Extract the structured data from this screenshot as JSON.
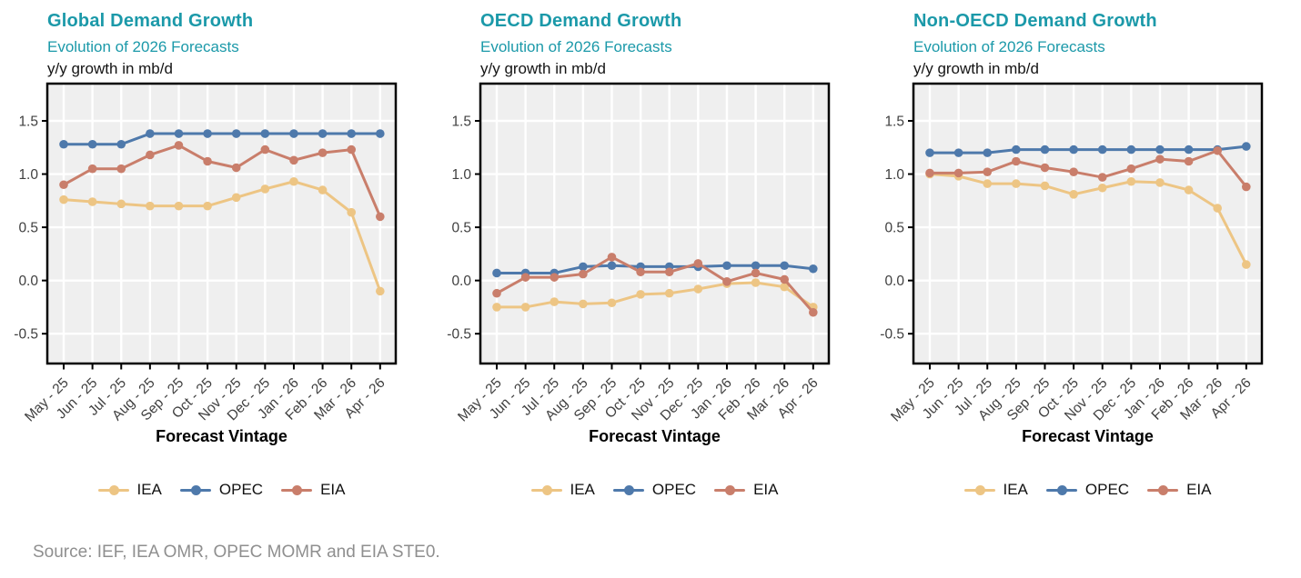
{
  "source_note": "Source: IEF, IEA OMR, OPEC MOMR and EIA STE0.",
  "styles": {
    "title_color": "#1b99a9",
    "axis_text_color": "#404040",
    "panel_bg": "#efefef",
    "grid_color": "#ffffff",
    "axis_line_color": "#000000",
    "source_color": "#8f8f8f"
  },
  "chart_data": [
    {
      "type": "line",
      "title": "Global Demand Growth",
      "subtitle": "Evolution of 2026 Forecasts",
      "unit": "y/y growth in mb/d",
      "xlabel": "Forecast Vintage",
      "categories": [
        "May - 25",
        "Jun - 25",
        "Jul - 25",
        "Aug - 25",
        "Sep - 25",
        "Oct - 25",
        "Nov - 25",
        "Dec - 25",
        "Jan - 26",
        "Feb - 26",
        "Mar - 26",
        "Apr - 26"
      ],
      "yticks": [
        -0.5,
        0.0,
        0.5,
        1.0,
        1.5
      ],
      "ylim": [
        -0.78,
        1.85
      ],
      "grid": true,
      "legend_position": "bottom",
      "series": [
        {
          "name": "IEA",
          "color": "#edc584",
          "values": [
            0.76,
            0.74,
            0.72,
            0.7,
            0.7,
            0.7,
            0.78,
            0.86,
            0.93,
            0.85,
            0.64,
            -0.1
          ]
        },
        {
          "name": "OPEC",
          "color": "#4e79ab",
          "values": [
            1.28,
            1.28,
            1.28,
            1.38,
            1.38,
            1.38,
            1.38,
            1.38,
            1.38,
            1.38,
            1.38,
            1.38
          ]
        },
        {
          "name": "EIA",
          "color": "#c97e6b",
          "values": [
            0.9,
            1.05,
            1.05,
            1.18,
            1.27,
            1.12,
            1.06,
            1.23,
            1.13,
            1.2,
            1.23,
            0.6
          ]
        }
      ]
    },
    {
      "type": "line",
      "title": "OECD Demand Growth",
      "subtitle": "Evolution of 2026 Forecasts",
      "unit": "y/y growth in mb/d",
      "xlabel": "Forecast Vintage",
      "categories": [
        "May - 25",
        "Jun - 25",
        "Jul - 25",
        "Aug - 25",
        "Sep - 25",
        "Oct - 25",
        "Nov - 25",
        "Dec - 25",
        "Jan - 26",
        "Feb - 26",
        "Mar - 26",
        "Apr - 26"
      ],
      "yticks": [
        -0.5,
        0.0,
        0.5,
        1.0,
        1.5
      ],
      "ylim": [
        -0.78,
        1.85
      ],
      "grid": true,
      "legend_position": "bottom",
      "series": [
        {
          "name": "IEA",
          "color": "#edc584",
          "values": [
            -0.25,
            -0.25,
            -0.2,
            -0.22,
            -0.21,
            -0.13,
            -0.12,
            -0.08,
            -0.03,
            -0.02,
            -0.06,
            -0.25
          ]
        },
        {
          "name": "OPEC",
          "color": "#4e79ab",
          "values": [
            0.07,
            0.07,
            0.07,
            0.13,
            0.14,
            0.13,
            0.13,
            0.13,
            0.14,
            0.14,
            0.14,
            0.11
          ]
        },
        {
          "name": "EIA",
          "color": "#c97e6b",
          "values": [
            -0.12,
            0.03,
            0.03,
            0.06,
            0.22,
            0.08,
            0.08,
            0.16,
            -0.01,
            0.07,
            0.01,
            -0.3
          ]
        }
      ]
    },
    {
      "type": "line",
      "title": "Non-OECD Demand Growth",
      "subtitle": "Evolution of 2026 Forecasts",
      "unit": "y/y growth in mb/d",
      "xlabel": "Forecast Vintage",
      "categories": [
        "May - 25",
        "Jun - 25",
        "Jul - 25",
        "Aug - 25",
        "Sep - 25",
        "Oct - 25",
        "Nov - 25",
        "Dec - 25",
        "Jan - 26",
        "Feb - 26",
        "Mar - 26",
        "Apr - 26"
      ],
      "yticks": [
        -0.5,
        0.0,
        0.5,
        1.0,
        1.5
      ],
      "ylim": [
        -0.78,
        1.85
      ],
      "grid": true,
      "legend_position": "bottom",
      "series": [
        {
          "name": "IEA",
          "color": "#edc584",
          "values": [
            1.0,
            0.98,
            0.91,
            0.91,
            0.89,
            0.81,
            0.87,
            0.93,
            0.92,
            0.85,
            0.68,
            0.15
          ]
        },
        {
          "name": "OPEC",
          "color": "#4e79ab",
          "values": [
            1.2,
            1.2,
            1.2,
            1.23,
            1.23,
            1.23,
            1.23,
            1.23,
            1.23,
            1.23,
            1.23,
            1.26
          ]
        },
        {
          "name": "EIA",
          "color": "#c97e6b",
          "values": [
            1.01,
            1.01,
            1.02,
            1.12,
            1.06,
            1.02,
            0.97,
            1.05,
            1.14,
            1.12,
            1.22,
            0.88
          ]
        }
      ]
    }
  ]
}
